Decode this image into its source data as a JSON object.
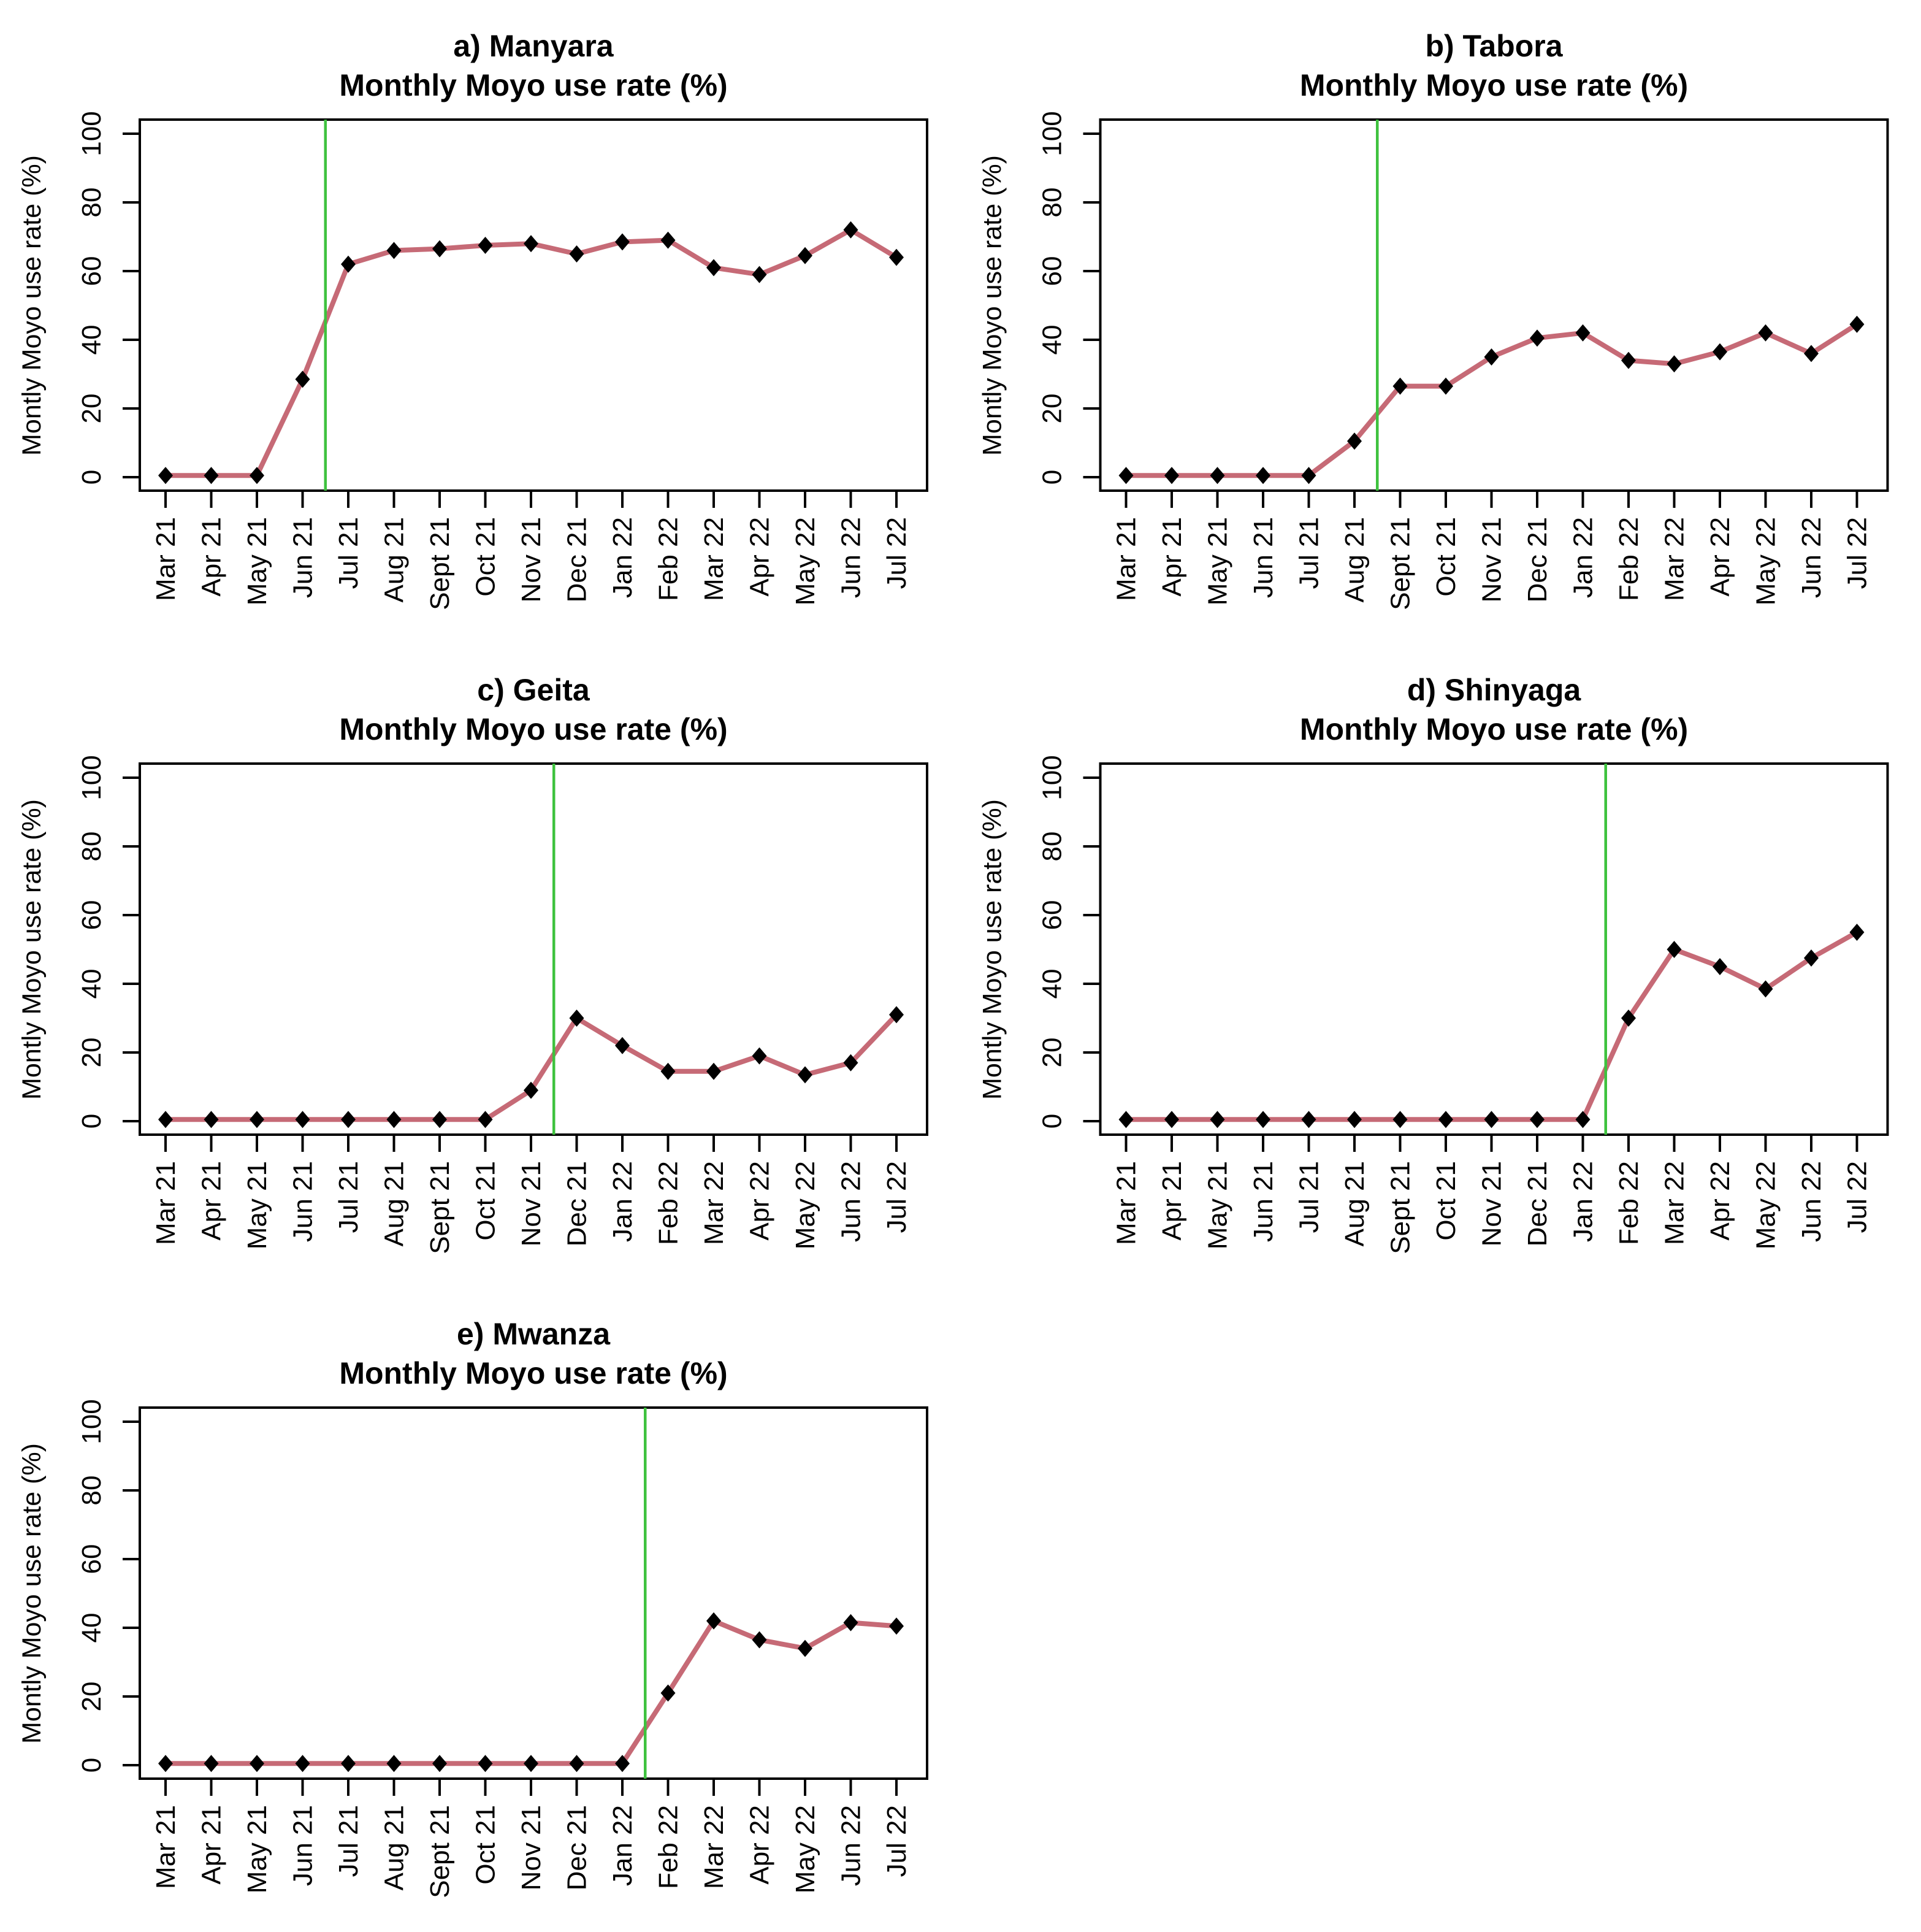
{
  "style": {
    "background": "#FFFFFF",
    "line_color": "#C66A76",
    "marker_color": "#000000",
    "vline_color": "#3EC23E",
    "box_color": "#000000",
    "text_color": "#000000"
  },
  "chart_data": [
    {
      "type": "line",
      "title": "a) Manyara",
      "subtitle": "Monthly Moyo use rate (%)",
      "ylabel": "Montly Moyo use rate (%)",
      "xlabel": "",
      "x_categories": [
        "Mar 21",
        "Apr 21",
        "May 21",
        "Jun 21",
        "Jul 21",
        "Aug 21",
        "Sept 21",
        "Oct 21",
        "Nov 21",
        "Dec 21",
        "Jan 22",
        "Feb 22",
        "Mar 22",
        "Apr 22",
        "May 22",
        "Jun 22",
        "Jul 22"
      ],
      "values": [
        0.5,
        0.5,
        0.5,
        28.5,
        62,
        66,
        66.5,
        67.5,
        68,
        65,
        68.5,
        69,
        61,
        59,
        64.5,
        72,
        64
      ],
      "ylim": [
        0,
        100
      ],
      "yticks": [
        0,
        20,
        40,
        60,
        80,
        100
      ],
      "grid": false,
      "legend": false,
      "vline_x_index": 3.5,
      "vline_between": [
        "Jun 21",
        "Jul 21"
      ]
    },
    {
      "type": "line",
      "title": "b) Tabora",
      "subtitle": "Monthly Moyo use rate (%)",
      "ylabel": "Montly Moyo use rate (%)",
      "xlabel": "",
      "x_categories": [
        "Mar 21",
        "Apr 21",
        "May 21",
        "Jun 21",
        "Jul 21",
        "Aug 21",
        "Sept 21",
        "Oct 21",
        "Nov 21",
        "Dec 21",
        "Jan 22",
        "Feb 22",
        "Mar 22",
        "Apr 22",
        "May 22",
        "Jun 22",
        "Jul 22"
      ],
      "values": [
        0.5,
        0.5,
        0.5,
        0.5,
        0.5,
        10.5,
        26.5,
        26.5,
        35,
        40.5,
        42,
        34,
        33,
        36.5,
        42,
        36,
        44.5
      ],
      "ylim": [
        0,
        100
      ],
      "yticks": [
        0,
        20,
        40,
        60,
        80,
        100
      ],
      "grid": false,
      "legend": false,
      "vline_x_index": 5.5,
      "vline_between": [
        "Aug 21",
        "Sept 21"
      ]
    },
    {
      "type": "line",
      "title": "c) Geita",
      "subtitle": "Monthly Moyo use rate (%)",
      "ylabel": "Montly Moyo use rate (%)",
      "xlabel": "",
      "x_categories": [
        "Mar 21",
        "Apr 21",
        "May 21",
        "Jun 21",
        "Jul 21",
        "Aug 21",
        "Sept 21",
        "Oct 21",
        "Nov 21",
        "Dec 21",
        "Jan 22",
        "Feb 22",
        "Mar 22",
        "Apr 22",
        "May 22",
        "Jun 22",
        "Jul 22"
      ],
      "values": [
        0.5,
        0.5,
        0.5,
        0.5,
        0.5,
        0.5,
        0.5,
        0.5,
        9,
        30,
        22,
        14.5,
        14.5,
        19,
        13.5,
        17,
        31
      ],
      "ylim": [
        0,
        100
      ],
      "yticks": [
        0,
        20,
        40,
        60,
        80,
        100
      ],
      "grid": false,
      "legend": false,
      "vline_x_index": 8.5,
      "vline_between": [
        "Nov 21",
        "Dec 21"
      ]
    },
    {
      "type": "line",
      "title": "d) Shinyaga",
      "subtitle": "Monthly Moyo use rate (%)",
      "ylabel": "Montly Moyo use rate (%)",
      "xlabel": "",
      "x_categories": [
        "Mar 21",
        "Apr 21",
        "May 21",
        "Jun 21",
        "Jul 21",
        "Aug 21",
        "Sept 21",
        "Oct 21",
        "Nov 21",
        "Dec 21",
        "Jan 22",
        "Feb 22",
        "Mar 22",
        "Apr 22",
        "May 22",
        "Jun 22",
        "Jul 22"
      ],
      "values": [
        0.5,
        0.5,
        0.5,
        0.5,
        0.5,
        0.5,
        0.5,
        0.5,
        0.5,
        0.5,
        0.5,
        30,
        50,
        45,
        38.5,
        47.5,
        55
      ],
      "ylim": [
        0,
        100
      ],
      "yticks": [
        0,
        20,
        40,
        60,
        80,
        100
      ],
      "grid": false,
      "legend": false,
      "vline_x_index": 10.5,
      "vline_between": [
        "Jan 22",
        "Feb 22"
      ]
    },
    {
      "type": "line",
      "title": "e) Mwanza",
      "subtitle": "Monthly Moyo use rate (%)",
      "ylabel": "Montly Moyo use rate (%)",
      "xlabel": "",
      "x_categories": [
        "Mar 21",
        "Apr 21",
        "May 21",
        "Jun 21",
        "Jul 21",
        "Aug 21",
        "Sept 21",
        "Oct 21",
        "Nov 21",
        "Dec 21",
        "Jan 22",
        "Feb 22",
        "Mar 22",
        "Apr 22",
        "May 22",
        "Jun 22",
        "Jul 22"
      ],
      "values": [
        0.5,
        0.5,
        0.5,
        0.5,
        0.5,
        0.5,
        0.5,
        0.5,
        0.5,
        0.5,
        0.5,
        21,
        42,
        36.5,
        34,
        41.5,
        40.5
      ],
      "ylim": [
        0,
        100
      ],
      "yticks": [
        0,
        20,
        40,
        60,
        80,
        100
      ],
      "grid": false,
      "legend": false,
      "vline_x_index": 10.5,
      "vline_between": [
        "Jan 22",
        "Feb 22"
      ]
    }
  ]
}
